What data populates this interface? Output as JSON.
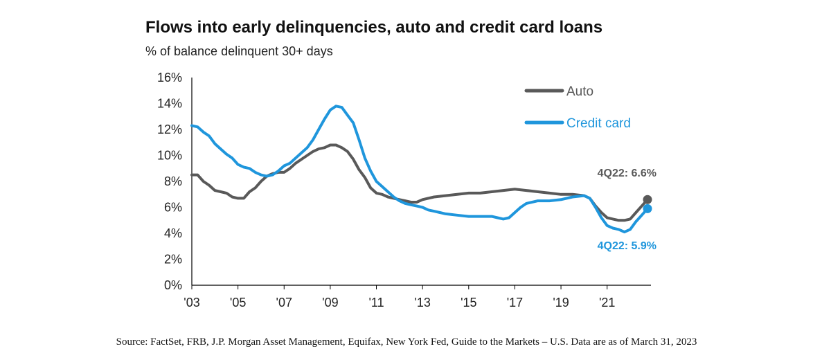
{
  "chart_data": {
    "type": "line",
    "title": "Flows into early delinquencies, auto and credit card loans",
    "subtitle": "% of balance delinquent 30+ days",
    "xlabel": "",
    "ylabel": "",
    "xlim": [
      2003.0,
      2022.9
    ],
    "ylim": [
      0,
      16
    ],
    "y_ticks": [
      "0%",
      "2%",
      "4%",
      "6%",
      "8%",
      "10%",
      "12%",
      "14%",
      "16%"
    ],
    "x_ticks": [
      "'03",
      "'05",
      "'07",
      "'09",
      "'11",
      "'13",
      "'15",
      "'17",
      "'19",
      "'21"
    ],
    "x_tick_values": [
      2003,
      2005,
      2007,
      2009,
      2011,
      2013,
      2015,
      2017,
      2019,
      2021
    ],
    "grid": false,
    "legend_position": "top-right",
    "series": [
      {
        "name": "Auto",
        "color": "#595959",
        "x": [
          2003.0,
          2003.25,
          2003.5,
          2003.75,
          2004.0,
          2004.25,
          2004.5,
          2004.75,
          2005.0,
          2005.25,
          2005.5,
          2005.75,
          2006.0,
          2006.25,
          2006.5,
          2006.75,
          2007.0,
          2007.25,
          2007.5,
          2007.75,
          2008.0,
          2008.25,
          2008.5,
          2008.75,
          2009.0,
          2009.25,
          2009.5,
          2009.75,
          2010.0,
          2010.25,
          2010.5,
          2010.75,
          2011.0,
          2011.25,
          2011.5,
          2011.75,
          2012.0,
          2012.25,
          2012.5,
          2012.75,
          2013.0,
          2013.5,
          2014.0,
          2014.5,
          2015.0,
          2015.5,
          2016.0,
          2016.5,
          2017.0,
          2017.5,
          2018.0,
          2018.5,
          2019.0,
          2019.5,
          2020.0,
          2020.25,
          2020.5,
          2020.75,
          2021.0,
          2021.25,
          2021.5,
          2021.75,
          2022.0,
          2022.25,
          2022.5,
          2022.75
        ],
        "values": [
          8.5,
          8.5,
          8.0,
          7.7,
          7.3,
          7.2,
          7.1,
          6.8,
          6.7,
          6.7,
          7.2,
          7.5,
          8.0,
          8.4,
          8.6,
          8.7,
          8.7,
          9.0,
          9.4,
          9.7,
          10.0,
          10.3,
          10.5,
          10.6,
          10.8,
          10.8,
          10.6,
          10.3,
          9.7,
          8.9,
          8.3,
          7.5,
          7.1,
          7.0,
          6.8,
          6.7,
          6.6,
          6.5,
          6.4,
          6.4,
          6.6,
          6.8,
          6.9,
          7.0,
          7.1,
          7.1,
          7.2,
          7.3,
          7.4,
          7.3,
          7.2,
          7.1,
          7.0,
          7.0,
          6.9,
          6.7,
          6.1,
          5.6,
          5.2,
          5.1,
          5.0,
          5.0,
          5.1,
          5.6,
          6.1,
          6.6
        ]
      },
      {
        "name": "Credit card",
        "color": "#1f96dc",
        "x": [
          2003.0,
          2003.25,
          2003.5,
          2003.75,
          2004.0,
          2004.25,
          2004.5,
          2004.75,
          2005.0,
          2005.25,
          2005.5,
          2005.75,
          2006.0,
          2006.25,
          2006.5,
          2006.75,
          2007.0,
          2007.25,
          2007.5,
          2007.75,
          2008.0,
          2008.25,
          2008.5,
          2008.75,
          2009.0,
          2009.25,
          2009.5,
          2009.75,
          2010.0,
          2010.25,
          2010.5,
          2010.75,
          2011.0,
          2011.25,
          2011.5,
          2011.75,
          2012.0,
          2012.25,
          2012.5,
          2012.75,
          2013.0,
          2013.25,
          2013.5,
          2013.75,
          2014.0,
          2014.5,
          2015.0,
          2015.5,
          2016.0,
          2016.25,
          2016.5,
          2016.75,
          2017.0,
          2017.25,
          2017.5,
          2018.0,
          2018.5,
          2019.0,
          2019.5,
          2020.0,
          2020.25,
          2020.5,
          2020.75,
          2021.0,
          2021.25,
          2021.5,
          2021.75,
          2022.0,
          2022.25,
          2022.5,
          2022.75
        ],
        "values": [
          12.3,
          12.2,
          11.8,
          11.5,
          10.9,
          10.5,
          10.1,
          9.8,
          9.3,
          9.1,
          9.0,
          8.7,
          8.5,
          8.4,
          8.5,
          8.8,
          9.2,
          9.4,
          9.8,
          10.2,
          10.6,
          11.2,
          12.0,
          12.8,
          13.5,
          13.8,
          13.7,
          13.1,
          12.5,
          11.2,
          9.8,
          8.8,
          8.0,
          7.6,
          7.2,
          6.8,
          6.5,
          6.3,
          6.2,
          6.1,
          6.0,
          5.8,
          5.7,
          5.6,
          5.5,
          5.4,
          5.3,
          5.3,
          5.3,
          5.2,
          5.1,
          5.2,
          5.6,
          6.0,
          6.3,
          6.5,
          6.5,
          6.6,
          6.8,
          6.9,
          6.7,
          6.0,
          5.2,
          4.6,
          4.4,
          4.3,
          4.1,
          4.3,
          4.9,
          5.4,
          5.9
        ]
      }
    ],
    "annotations": {
      "auto_end": "4Q22:  6.6%",
      "credit_end": "4Q22:  5.9%"
    }
  },
  "source_note": "Source: FactSet, FRB, J.P. Morgan Asset Management, Equifax, New York Fed, Guide to the Markets – U.S. Data are as of March 31, 2023"
}
